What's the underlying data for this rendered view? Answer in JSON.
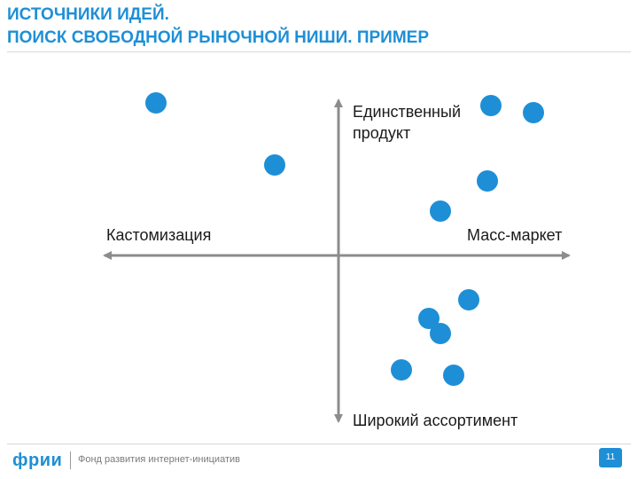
{
  "header": {
    "title_line1": "ИСТОЧНИКИ ИДЕЙ.",
    "title_line2": "ПОИСК СВОБОДНОЙ РЫНОЧНОЙ НИШИ. ПРИМЕР"
  },
  "diagram": {
    "axis_top_line1": "Единственный",
    "axis_top_line2": "продукт",
    "axis_left": "Кастомизация",
    "axis_right": "Масс-маркет",
    "axis_bottom": "Широкий ассортимент",
    "dot_color": "#1e8fd6",
    "axis_color": "#8c8c8c"
  },
  "footer": {
    "logo": "фрии",
    "org_name": "Фонд развития интернет-инициатив",
    "page_number": "11"
  }
}
